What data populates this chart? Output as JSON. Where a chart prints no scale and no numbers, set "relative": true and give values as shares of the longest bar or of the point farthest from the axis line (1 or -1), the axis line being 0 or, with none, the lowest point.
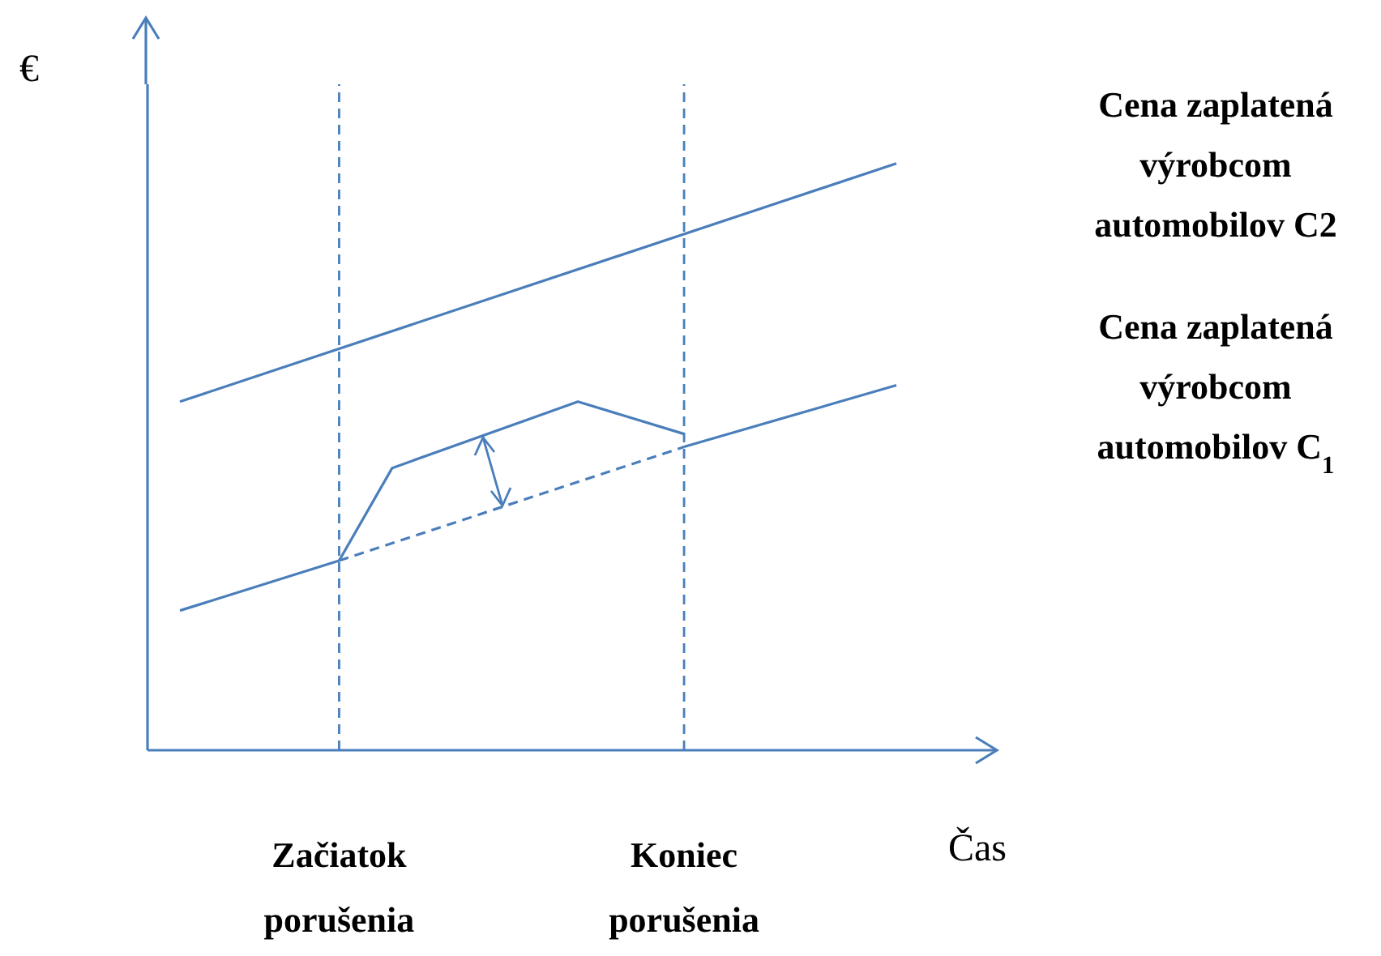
{
  "chart_data": {
    "type": "line",
    "relative": true,
    "xlabel": "Čas",
    "ylabel": "€",
    "categories": [
      null,
      null,
      null,
      null,
      null,
      null,
      "Začiatok porušenia",
      null,
      null,
      null,
      null,
      null,
      null,
      null,
      null,
      null,
      null,
      null,
      null,
      "Koniec porušenia",
      null,
      null,
      null,
      null,
      null,
      null,
      null,
      null
    ],
    "series": [
      {
        "name": "Cena zaplatená výrobcom automobilov C2",
        "color": "#4a7ebb",
        "values": [
          0.594,
          null,
          null,
          null,
          null,
          null,
          null,
          null,
          null,
          null,
          null,
          null,
          null,
          null,
          null,
          null,
          null,
          null,
          null,
          null,
          null,
          null,
          null,
          null,
          null,
          null,
          null,
          1.0
        ]
      },
      {
        "color": "#4a7ebb",
        "values": [
          0.238,
          null,
          null,
          null,
          null,
          null,
          0.323,
          null,
          null,
          null,
          null,
          null,
          null,
          null,
          null,
          null,
          null,
          null,
          null,
          null,
          null,
          null,
          null,
          null,
          null,
          null,
          null,
          null
        ]
      },
      {
        "name": "Cena zaplatená výrobcom automobilov C$_{1}$",
        "color": "#4a7ebb",
        "values": [
          null,
          null,
          null,
          null,
          null,
          null,
          null,
          null,
          null,
          null,
          null,
          null,
          null,
          null,
          null,
          null,
          null,
          null,
          null,
          0.517,
          null,
          null,
          null,
          null,
          null,
          null,
          null,
          0.622
        ]
      },
      {
        "color": "#4a7ebb",
        "line_style": "dashed",
        "values": [
          null,
          null,
          null,
          null,
          null,
          null,
          0.323,
          null,
          null,
          null,
          null,
          null,
          null,
          null,
          null,
          null,
          null,
          null,
          null,
          0.517,
          null,
          null,
          null,
          null,
          null,
          null,
          null,
          null
        ]
      },
      {
        "color": "#4a7ebb",
        "values": [
          null,
          null,
          null,
          null,
          null,
          null,
          0.323,
          null,
          0.481,
          null,
          null,
          null,
          null,
          null,
          null,
          0.594,
          null,
          null,
          null,
          0.539,
          null,
          null,
          null,
          null,
          null,
          null,
          null,
          null
        ]
      }
    ],
    "ref_lines": [
      {
        "axis": "x",
        "value": "Začiatok porušenia",
        "color": "#4a7ebb",
        "line_style": "dashed"
      },
      {
        "axis": "x",
        "value": "Koniec porušenia",
        "color": "#4a7ebb",
        "line_style": "dashed"
      }
    ]
  }
}
